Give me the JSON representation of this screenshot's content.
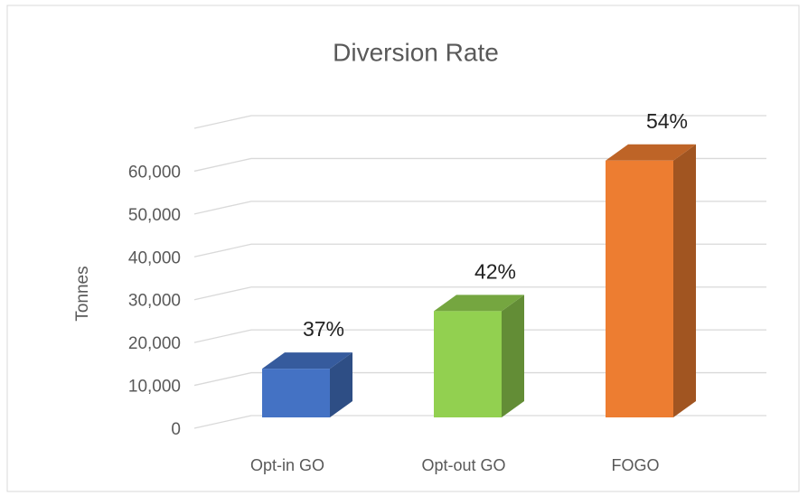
{
  "chart_data": {
    "type": "bar3d",
    "title": "Diversion Rate",
    "y_label": "Tonnes",
    "categories": [
      "Opt-in GO",
      "Opt-out GO",
      "FOGO"
    ],
    "values": [
      11000,
      24000,
      58000
    ],
    "colors": [
      "#4472c4",
      "#92d050",
      "#ed7d31"
    ],
    "annotations": [
      "37%",
      "42%",
      "54%"
    ],
    "ylim": [
      0,
      70000
    ],
    "yticks": [
      0,
      {
        "value": 10000,
        "label": "10,000"
      },
      {
        "value": 20000,
        "label": "20,000"
      },
      {
        "value": 30000,
        "label": "30,000"
      },
      {
        "value": 40000,
        "label": "40,000"
      },
      {
        "value": 50000,
        "label": "50,000"
      },
      {
        "value": 60000,
        "label": "60,000"
      }
    ],
    "grid": true
  }
}
